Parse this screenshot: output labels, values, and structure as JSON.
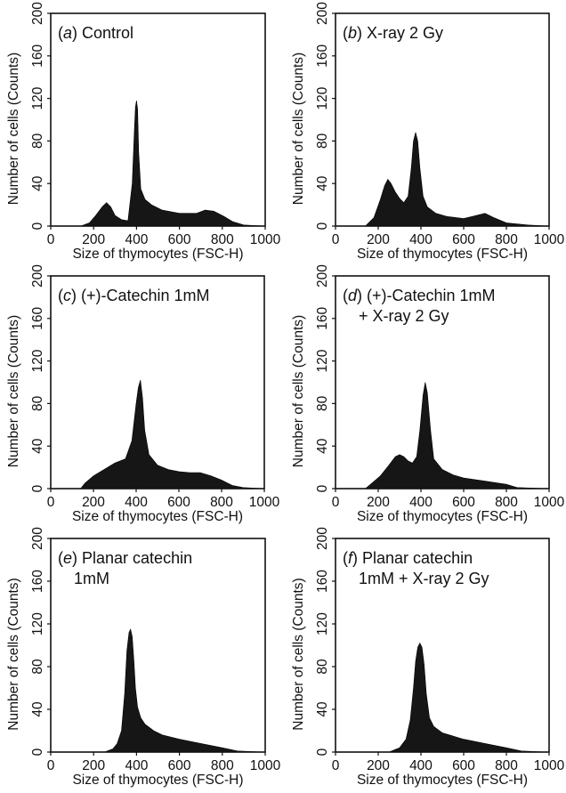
{
  "figure": {
    "xlabel": "Size of thymocytes (FSC-H)",
    "ylabel": "Number of cells (Counts)"
  },
  "chart_data": [
    {
      "type": "area",
      "letter": "a",
      "title_lines": [
        ") Control"
      ],
      "xlabel": "Size of thymocytes (FSC-H)",
      "ylabel": "Number of cells (Counts)",
      "xlim": [
        0,
        1000
      ],
      "ylim": [
        0,
        200
      ],
      "xticks": [
        0,
        200,
        400,
        600,
        800,
        1000
      ],
      "yticks": [
        0,
        40,
        80,
        120,
        160,
        200
      ],
      "x": [
        0,
        140,
        180,
        210,
        240,
        260,
        280,
        300,
        330,
        360,
        380,
        390,
        395,
        400,
        405,
        410,
        420,
        440,
        470,
        520,
        600,
        680,
        720,
        760,
        800,
        850,
        900,
        1000
      ],
      "y": [
        0,
        0,
        3,
        10,
        18,
        22,
        18,
        10,
        6,
        5,
        40,
        90,
        112,
        118,
        110,
        70,
        35,
        25,
        20,
        15,
        12,
        12,
        15,
        14,
        10,
        4,
        1,
        0
      ]
    },
    {
      "type": "area",
      "letter": "b",
      "title_lines": [
        ") X-ray 2 Gy"
      ],
      "xlabel": "Size of thymocytes (FSC-H)",
      "ylabel": "Number of cells (Counts)",
      "xlim": [
        0,
        1000
      ],
      "ylim": [
        0,
        200
      ],
      "xticks": [
        0,
        200,
        400,
        600,
        800,
        1000
      ],
      "yticks": [
        0,
        40,
        80,
        120,
        160,
        200
      ],
      "x": [
        0,
        140,
        180,
        210,
        230,
        245,
        260,
        280,
        300,
        320,
        340,
        355,
        365,
        375,
        385,
        395,
        410,
        430,
        470,
        520,
        600,
        660,
        700,
        740,
        800,
        900,
        1000
      ],
      "y": [
        0,
        0,
        8,
        25,
        38,
        44,
        40,
        32,
        26,
        22,
        28,
        55,
        80,
        88,
        80,
        55,
        28,
        18,
        12,
        9,
        7,
        10,
        12,
        8,
        3,
        1,
        0
      ]
    },
    {
      "type": "area",
      "letter": "c",
      "title_lines": [
        ") (+)-Catechin 1mM"
      ],
      "xlabel": "Size of thymocytes (FSC-H)",
      "ylabel": "Number of cells (Counts)",
      "xlim": [
        0,
        1000
      ],
      "ylim": [
        0,
        200
      ],
      "xticks": [
        0,
        200,
        400,
        600,
        800,
        1000
      ],
      "yticks": [
        0,
        40,
        80,
        120,
        160,
        200
      ],
      "x": [
        0,
        140,
        160,
        200,
        250,
        300,
        350,
        380,
        400,
        410,
        420,
        430,
        440,
        460,
        500,
        550,
        600,
        650,
        700,
        750,
        800,
        850,
        900,
        1000
      ],
      "y": [
        0,
        0,
        5,
        12,
        18,
        24,
        28,
        45,
        80,
        95,
        102,
        85,
        55,
        32,
        22,
        18,
        16,
        15,
        15,
        12,
        8,
        3,
        1,
        0
      ]
    },
    {
      "type": "area",
      "letter": "d",
      "title_lines": [
        ") (+)-Catechin 1mM",
        "+ X-ray 2 Gy"
      ],
      "xlabel": "Size of thymocytes (FSC-H)",
      "ylabel": "Number of cells (Counts)",
      "xlim": [
        0,
        1000
      ],
      "ylim": [
        0,
        200
      ],
      "xticks": [
        0,
        200,
        400,
        600,
        800,
        1000
      ],
      "yticks": [
        0,
        40,
        80,
        120,
        160,
        200
      ],
      "x": [
        0,
        140,
        170,
        210,
        250,
        280,
        300,
        320,
        340,
        360,
        380,
        395,
        410,
        420,
        430,
        445,
        460,
        500,
        550,
        600,
        700,
        800,
        850,
        1000
      ],
      "y": [
        0,
        0,
        5,
        12,
        22,
        30,
        32,
        30,
        26,
        24,
        30,
        55,
        88,
        100,
        90,
        55,
        28,
        18,
        13,
        10,
        7,
        4,
        1,
        0
      ]
    },
    {
      "type": "area",
      "letter": "e",
      "title_lines": [
        ") Planar catechin",
        "1mM"
      ],
      "xlabel": "Size of thymocytes (FSC-H)",
      "ylabel": "Number of cells (Counts)",
      "xlim": [
        0,
        1000
      ],
      "ylim": [
        0,
        200
      ],
      "xticks": [
        0,
        200,
        400,
        600,
        800,
        1000
      ],
      "yticks": [
        0,
        40,
        80,
        120,
        160,
        200
      ],
      "x": [
        0,
        250,
        290,
        310,
        330,
        345,
        355,
        365,
        372,
        380,
        388,
        395,
        405,
        420,
        440,
        480,
        520,
        600,
        700,
        800,
        870,
        1000
      ],
      "y": [
        0,
        0,
        3,
        8,
        20,
        55,
        95,
        112,
        115,
        108,
        85,
        60,
        42,
        32,
        26,
        20,
        16,
        12,
        8,
        4,
        1,
        0
      ]
    },
    {
      "type": "area",
      "letter": "f",
      "title_lines": [
        ") Planar catechin",
        "1mM + X-ray 2 Gy"
      ],
      "xlabel": "Size of thymocytes (FSC-H)",
      "ylabel": "Number of cells (Counts)",
      "xlim": [
        0,
        1000
      ],
      "ylim": [
        0,
        200
      ],
      "xticks": [
        0,
        200,
        400,
        600,
        800,
        1000
      ],
      "yticks": [
        0,
        40,
        80,
        120,
        160,
        200
      ],
      "x": [
        0,
        250,
        300,
        330,
        350,
        365,
        375,
        385,
        395,
        405,
        415,
        425,
        440,
        460,
        500,
        550,
        600,
        700,
        800,
        870,
        1000
      ],
      "y": [
        0,
        0,
        4,
        12,
        30,
        60,
        85,
        98,
        102,
        98,
        82,
        55,
        32,
        24,
        18,
        15,
        12,
        8,
        4,
        1,
        0
      ]
    }
  ]
}
